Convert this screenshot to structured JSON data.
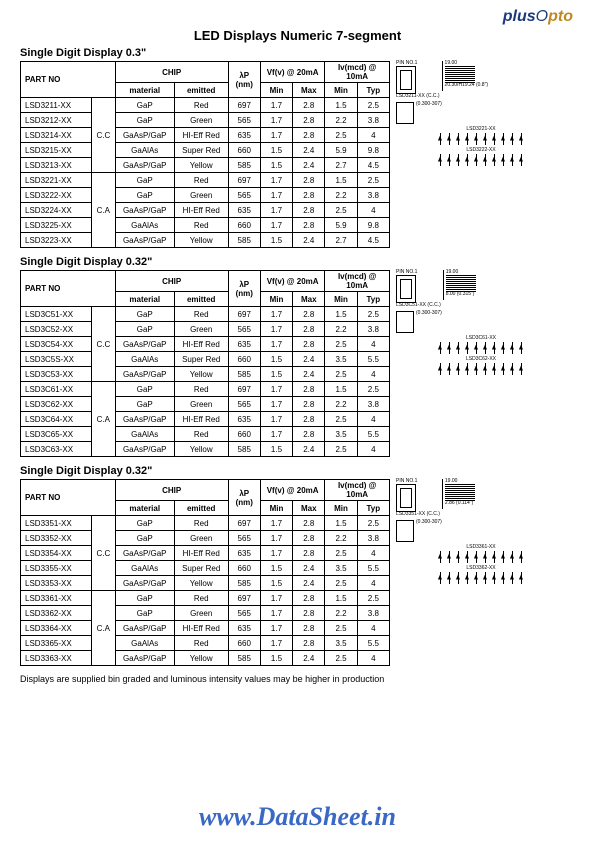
{
  "logo": {
    "plus": "plus",
    "opto": "pto",
    "opto_o": "O"
  },
  "main_title": "LED Displays Numeric 7-segment",
  "sections": [
    {
      "title": "Single Digit Display 0.3\"",
      "diag_label1": "LSD3211-XX (C.C.)",
      "diag_dim1": "20.30/H19.24 (0.8\")",
      "diag_label2": "LSD3221-XX",
      "diag_label3": "LSD3222-XX",
      "rows": [
        {
          "part": "LSD3211-XX",
          "cc": "",
          "mat": "GaP",
          "emit": "Red",
          "lp": "697",
          "vfmin": "1.7",
          "vfmax": "2.8",
          "ivmin": "1.5",
          "ivtyp": "2.5"
        },
        {
          "part": "LSD3212-XX",
          "cc": "C.C",
          "mat": "GaP",
          "emit": "Green",
          "lp": "565",
          "vfmin": "1.7",
          "vfmax": "2.8",
          "ivmin": "2.2",
          "ivtyp": "3.8"
        },
        {
          "part": "LSD3214-XX",
          "cc": "",
          "mat": "GaAsP/GaP",
          "emit": "HI-Eff Red",
          "lp": "635",
          "vfmin": "1.7",
          "vfmax": "2.8",
          "ivmin": "2.5",
          "ivtyp": "4"
        },
        {
          "part": "LSD3215-XX",
          "cc": "",
          "mat": "GaAlAs",
          "emit": "Super Red",
          "lp": "660",
          "vfmin": "1.5",
          "vfmax": "2.4",
          "ivmin": "5.9",
          "ivtyp": "9.8"
        },
        {
          "part": "LSD3213-XX",
          "cc": "",
          "mat": "GaAsP/GaP",
          "emit": "Yellow",
          "lp": "585",
          "vfmin": "1.5",
          "vfmax": "2.4",
          "ivmin": "2.7",
          "ivtyp": "4.5"
        },
        {
          "part": "LSD3221-XX",
          "cc": "",
          "mat": "GaP",
          "emit": "Red",
          "lp": "697",
          "vfmin": "1.7",
          "vfmax": "2.8",
          "ivmin": "1.5",
          "ivtyp": "2.5"
        },
        {
          "part": "LSD3222-XX",
          "cc": "",
          "mat": "GaP",
          "emit": "Green",
          "lp": "565",
          "vfmin": "1.7",
          "vfmax": "2.8",
          "ivmin": "2.2",
          "ivtyp": "3.8"
        },
        {
          "part": "LSD3224-XX",
          "cc": "C.A",
          "mat": "GaAsP/GaP",
          "emit": "HI-Eff Red",
          "lp": "635",
          "vfmin": "1.7",
          "vfmax": "2.8",
          "ivmin": "2.5",
          "ivtyp": "4"
        },
        {
          "part": "LSD3225-XX",
          "cc": "",
          "mat": "GaAlAs",
          "emit": "Red",
          "lp": "660",
          "vfmin": "1.7",
          "vfmax": "2.8",
          "ivmin": "5.9",
          "ivtyp": "9.8"
        },
        {
          "part": "LSD3223-XX",
          "cc": "",
          "mat": "GaAsP/GaP",
          "emit": "Yellow",
          "lp": "585",
          "vfmin": "1.5",
          "vfmax": "2.4",
          "ivmin": "2.7",
          "ivtyp": "4.5"
        }
      ]
    },
    {
      "title": "Single Digit Display 0.32\"",
      "diag_label1": "LSD3C51-XX (C.C.)",
      "diag_dim1": "8.00 (0.315\")",
      "diag_label2": "LSD3C61-XX",
      "diag_label3": "LSD3C62-XX",
      "rows": [
        {
          "part": "LSD3C51-XX",
          "cc": "",
          "mat": "GaP",
          "emit": "Red",
          "lp": "697",
          "vfmin": "1.7",
          "vfmax": "2.8",
          "ivmin": "1.5",
          "ivtyp": "2.5"
        },
        {
          "part": "LSD3C52-XX",
          "cc": "C.C",
          "mat": "GaP",
          "emit": "Green",
          "lp": "565",
          "vfmin": "1.7",
          "vfmax": "2.8",
          "ivmin": "2.2",
          "ivtyp": "3.8"
        },
        {
          "part": "LSD3C54-XX",
          "cc": "",
          "mat": "GaAsP/GaP",
          "emit": "HI-Eff Red",
          "lp": "635",
          "vfmin": "1.7",
          "vfmax": "2.8",
          "ivmin": "2.5",
          "ivtyp": "4"
        },
        {
          "part": "LSD3C5S-XX",
          "cc": "",
          "mat": "GaAlAs",
          "emit": "Super Red",
          "lp": "660",
          "vfmin": "1.5",
          "vfmax": "2.4",
          "ivmin": "3.5",
          "ivtyp": "5.5"
        },
        {
          "part": "LSD3C53-XX",
          "cc": "",
          "mat": "GaAsP/GaP",
          "emit": "Yellow",
          "lp": "585",
          "vfmin": "1.5",
          "vfmax": "2.4",
          "ivmin": "2.5",
          "ivtyp": "4"
        },
        {
          "part": "LSD3C61-XX",
          "cc": "",
          "mat": "GaP",
          "emit": "Red",
          "lp": "697",
          "vfmin": "1.7",
          "vfmax": "2.8",
          "ivmin": "1.5",
          "ivtyp": "2.5"
        },
        {
          "part": "LSD3C62-XX",
          "cc": "",
          "mat": "GaP",
          "emit": "Green",
          "lp": "565",
          "vfmin": "1.7",
          "vfmax": "2.8",
          "ivmin": "2.2",
          "ivtyp": "3.8"
        },
        {
          "part": "LSD3C64-XX",
          "cc": "C.A",
          "mat": "GaAsP/GaP",
          "emit": "HI-Eff Red",
          "lp": "635",
          "vfmin": "1.7",
          "vfmax": "2.8",
          "ivmin": "2.5",
          "ivtyp": "4"
        },
        {
          "part": "LSD3C65-XX",
          "cc": "",
          "mat": "GaAlAs",
          "emit": "Red",
          "lp": "660",
          "vfmin": "1.7",
          "vfmax": "2.8",
          "ivmin": "3.5",
          "ivtyp": "5.5"
        },
        {
          "part": "LSD3C63-XX",
          "cc": "",
          "mat": "GaAsP/GaP",
          "emit": "Yellow",
          "lp": "585",
          "vfmin": "1.5",
          "vfmax": "2.4",
          "ivmin": "2.5",
          "ivtyp": "4"
        }
      ]
    },
    {
      "title": "Single Digit Display 0.32\"",
      "diag_label1": "LSD3351-XX (C.C.)",
      "diag_dim1": "2.86 (0.114\")",
      "diag_label2": "LSD3361-XX",
      "diag_label3": "LSD3362-XX",
      "rows": [
        {
          "part": "LSD3351-XX",
          "cc": "",
          "mat": "GaP",
          "emit": "Red",
          "lp": "697",
          "vfmin": "1.7",
          "vfmax": "2.8",
          "ivmin": "1.5",
          "ivtyp": "2.5"
        },
        {
          "part": "LSD3352-XX",
          "cc": "C.C",
          "mat": "GaP",
          "emit": "Green",
          "lp": "565",
          "vfmin": "1.7",
          "vfmax": "2.8",
          "ivmin": "2.2",
          "ivtyp": "3.8"
        },
        {
          "part": "LSD3354-XX",
          "cc": "",
          "mat": "GaAsP/GaP",
          "emit": "HI-Eff Red",
          "lp": "635",
          "vfmin": "1.7",
          "vfmax": "2.8",
          "ivmin": "2.5",
          "ivtyp": "4"
        },
        {
          "part": "LSD3355-XX",
          "cc": "",
          "mat": "GaAlAs",
          "emit": "Super Red",
          "lp": "660",
          "vfmin": "1.5",
          "vfmax": "2.4",
          "ivmin": "3.5",
          "ivtyp": "5.5"
        },
        {
          "part": "LSD3353-XX",
          "cc": "",
          "mat": "GaAsP/GaP",
          "emit": "Yellow",
          "lp": "585",
          "vfmin": "1.5",
          "vfmax": "2.4",
          "ivmin": "2.5",
          "ivtyp": "4"
        },
        {
          "part": "LSD3361-XX",
          "cc": "",
          "mat": "GaP",
          "emit": "Red",
          "lp": "697",
          "vfmin": "1.7",
          "vfmax": "2.8",
          "ivmin": "1.5",
          "ivtyp": "2.5"
        },
        {
          "part": "LSD3362-XX",
          "cc": "",
          "mat": "GaP",
          "emit": "Green",
          "lp": "565",
          "vfmin": "1.7",
          "vfmax": "2.8",
          "ivmin": "2.2",
          "ivtyp": "3.8"
        },
        {
          "part": "LSD3364-XX",
          "cc": "C.A",
          "mat": "GaAsP/GaP",
          "emit": "HI-Eff Red",
          "lp": "635",
          "vfmin": "1.7",
          "vfmax": "2.8",
          "ivmin": "2.5",
          "ivtyp": "4"
        },
        {
          "part": "LSD3365-XX",
          "cc": "",
          "mat": "GaAlAs",
          "emit": "Red",
          "lp": "660",
          "vfmin": "1.7",
          "vfmax": "2.8",
          "ivmin": "3.5",
          "ivtyp": "5.5"
        },
        {
          "part": "LSD3363-XX",
          "cc": "",
          "mat": "GaAsP/GaP",
          "emit": "Yellow",
          "lp": "585",
          "vfmin": "1.5",
          "vfmax": "2.4",
          "ivmin": "2.5",
          "ivtyp": "4"
        }
      ]
    }
  ],
  "headers": {
    "partno": "PART NO",
    "chip": "CHIP",
    "lp": "λP (nm)",
    "vf": "Vf(v) @ 20mA",
    "iv": "Iv(mcd) @ 10mA",
    "material": "material",
    "emitted": "emitted",
    "min": "Min",
    "max": "Max",
    "typ": "Typ"
  },
  "footer_note": "Displays are supplied bin graded and luminous intensity values may be higher in production",
  "watermark": {
    "www": "www.",
    "ds": "DataSheet",
    "in": ".in"
  },
  "pin_label": "PIN NO.1",
  "dim_height": "19.00",
  "dim_width": "12.50",
  "dim_char": "(0.300-307)"
}
